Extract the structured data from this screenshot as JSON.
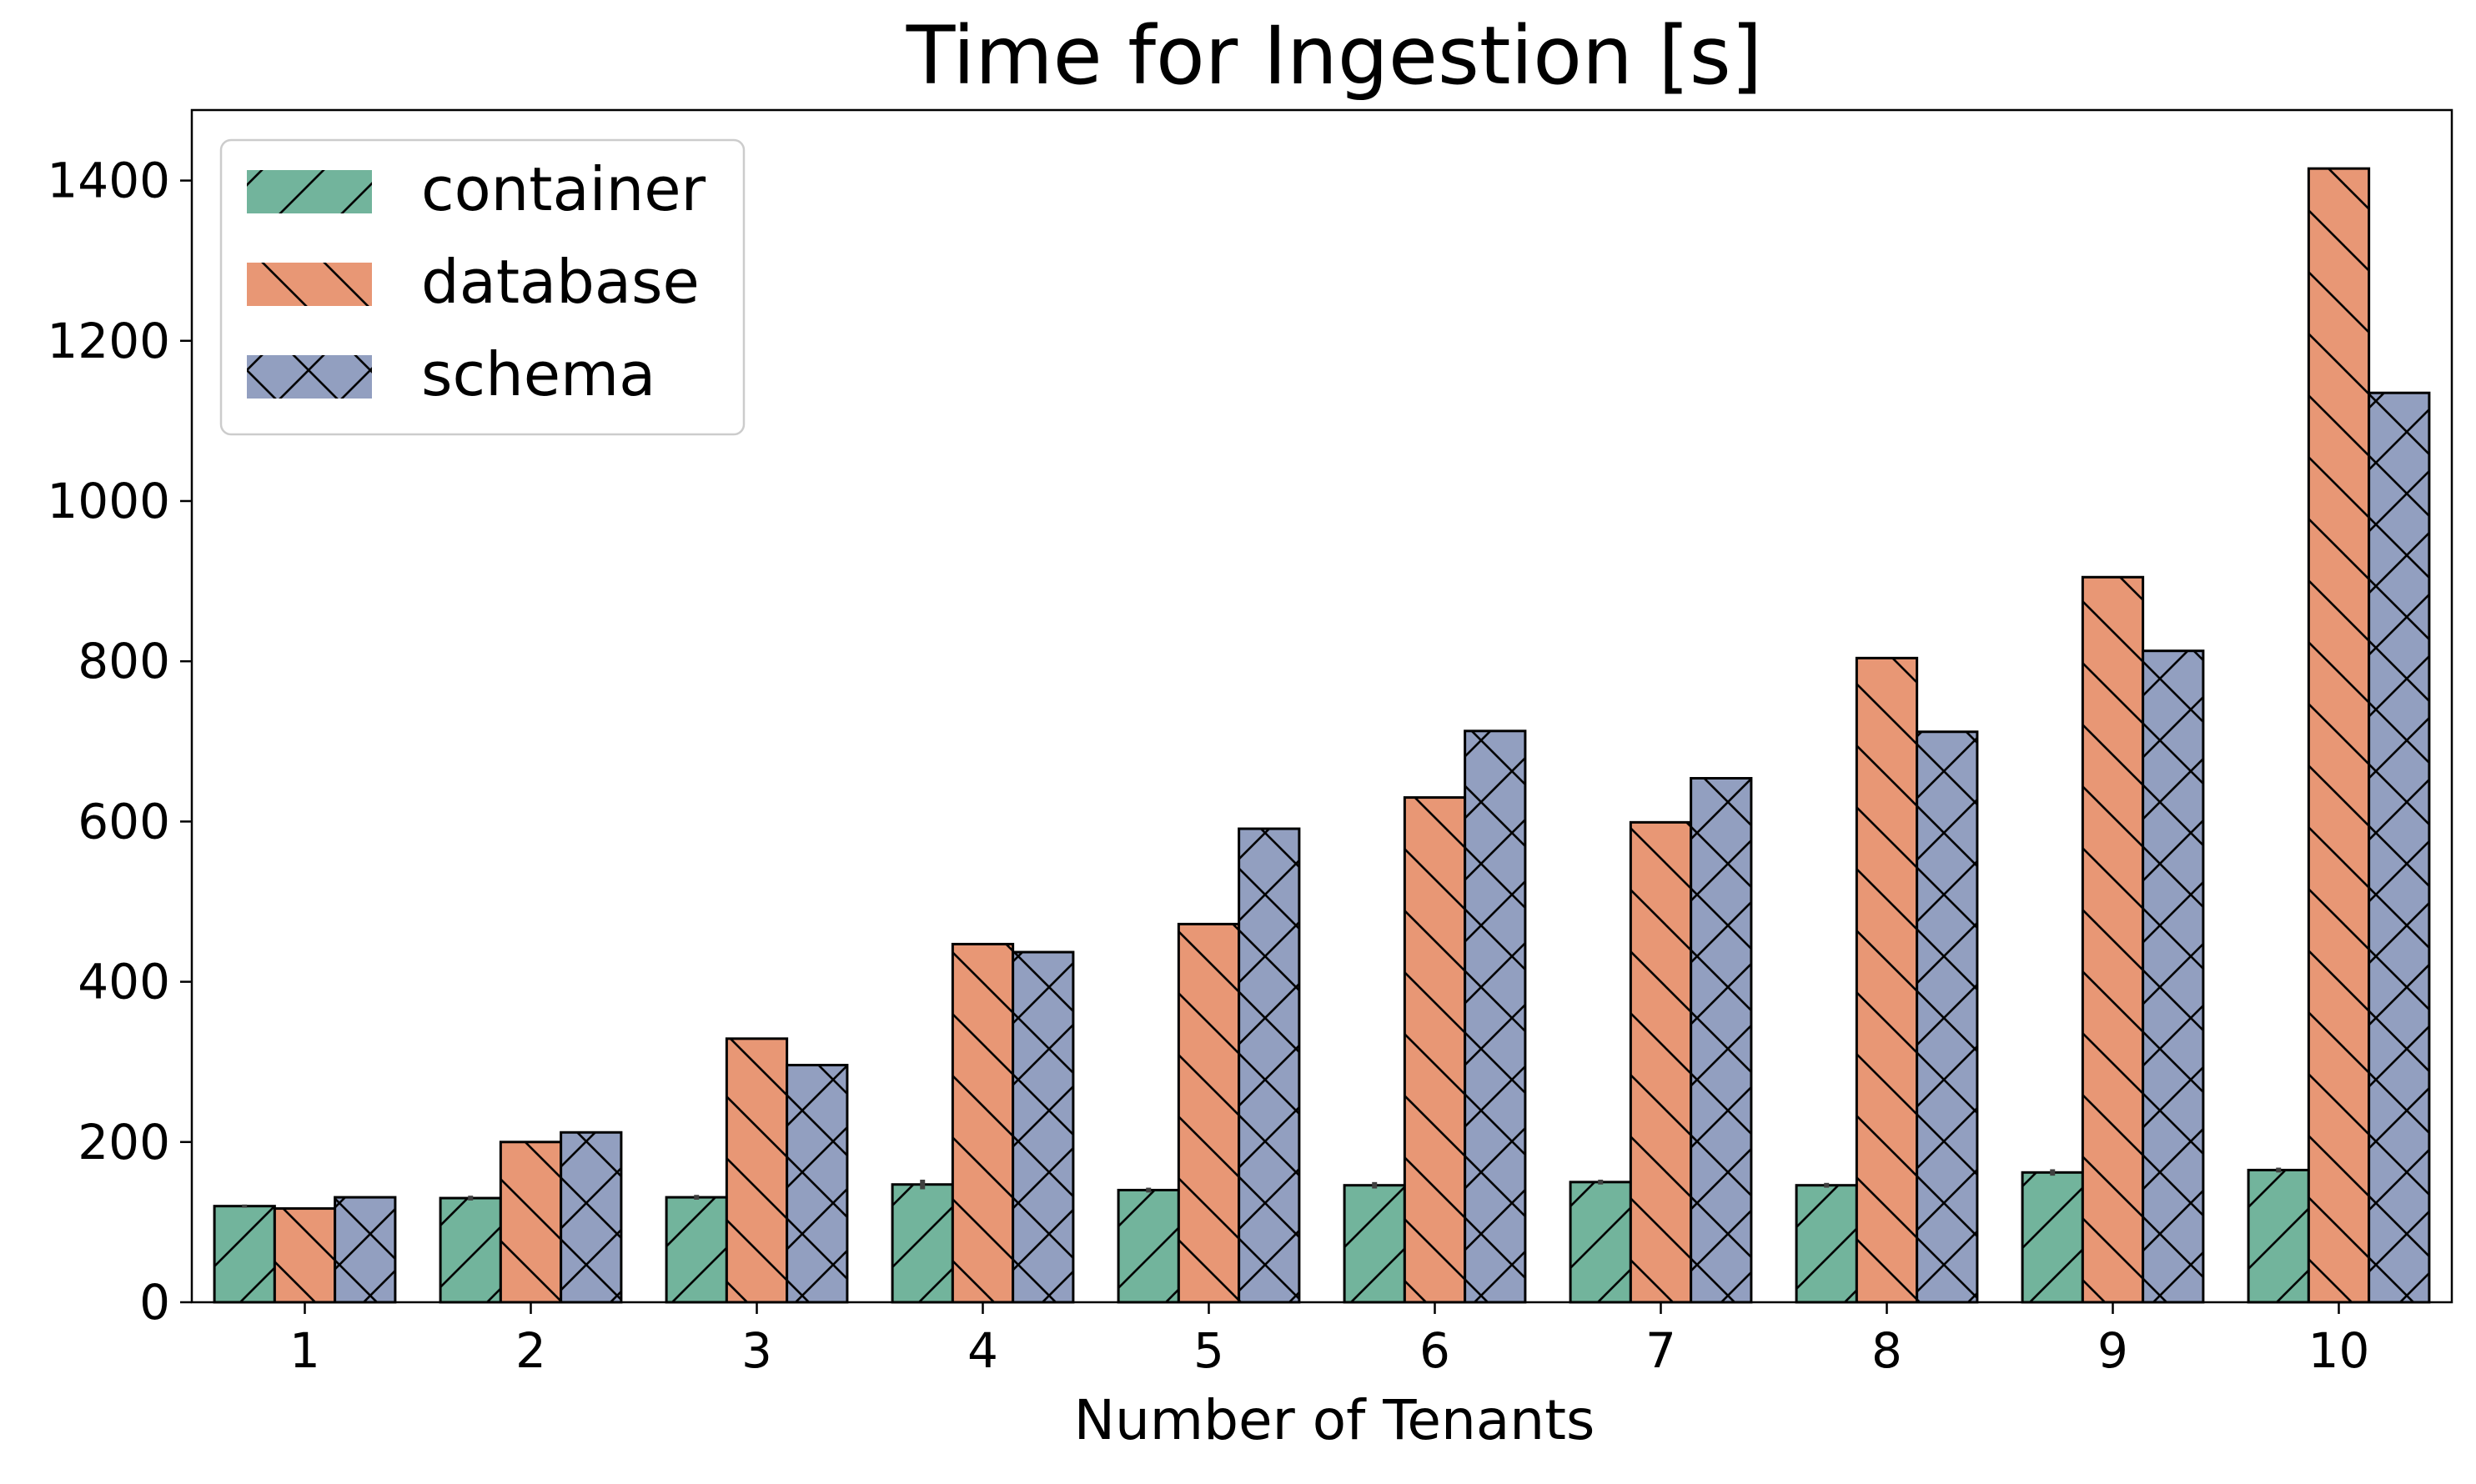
{
  "chart_data": {
    "type": "bar",
    "title": "Time for Ingestion [s]",
    "xlabel": "Number of Tenants",
    "ylabel": "",
    "categories": [
      "1",
      "2",
      "3",
      "4",
      "5",
      "6",
      "7",
      "8",
      "9",
      "10"
    ],
    "series": [
      {
        "name": "container",
        "color": "#72b49c",
        "hatch": "/",
        "values": [
          120,
          130,
          131,
          147,
          140,
          146,
          150,
          146,
          162,
          165
        ],
        "error": [
          2,
          3,
          3,
          6,
          3,
          4,
          3,
          3,
          4,
          3
        ]
      },
      {
        "name": "database",
        "color": "#e89775",
        "hatch": "\\",
        "values": [
          117,
          200,
          329,
          447,
          472,
          630,
          599,
          804,
          905,
          1415
        ],
        "error": [
          0,
          0,
          0,
          0,
          0,
          0,
          0,
          0,
          0,
          0
        ]
      },
      {
        "name": "schema",
        "color": "#929fc0",
        "hatch": "x",
        "values": [
          131,
          212,
          296,
          437,
          591,
          713,
          654,
          712,
          813,
          1135
        ],
        "error": [
          0,
          0,
          0,
          0,
          0,
          0,
          0,
          0,
          0,
          0
        ]
      }
    ],
    "yticks": [
      0,
      200,
      400,
      600,
      800,
      1000,
      1200,
      1400
    ],
    "ylim": [
      0,
      1488
    ],
    "grid": false,
    "legend_position": "top-left"
  }
}
